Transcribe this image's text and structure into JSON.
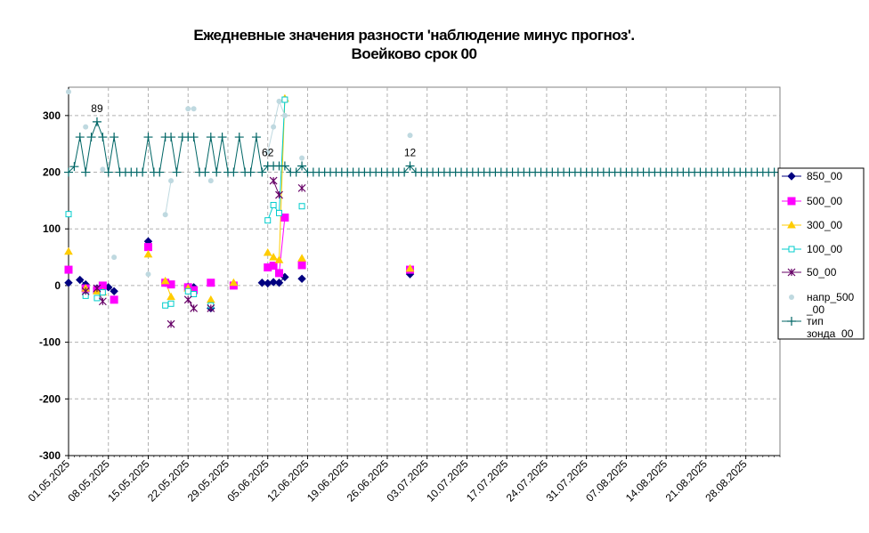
{
  "header": {
    "title_line1": "Ежедневные значения разности 'наблюдение минус прогноз'.",
    "title_line2": "Воейково     срок 00"
  },
  "chart_data": {
    "type": "line",
    "xlabel": "",
    "ylabel": "",
    "ylim": [
      -300,
      350
    ],
    "yticks": [
      -300,
      -200,
      -100,
      0,
      100,
      200,
      300
    ],
    "ytick_labels": [
      "-300",
      "-200",
      "-100",
      "0",
      "100",
      "200",
      "300"
    ],
    "xlim": [
      "2025-05-01",
      "2025-09-03"
    ],
    "xticks": [
      "01.05.2025",
      "08.05.2025",
      "15.05.2025",
      "22.05.2025",
      "29.05.2025",
      "05.06.2025",
      "12.06.2025",
      "19.06.2025",
      "26.06.2025",
      "03.07.2025",
      "10.07.2025",
      "17.07.2025",
      "24.07.2025",
      "31.07.2025",
      "07.08.2025",
      "14.08.2025",
      "21.08.2025",
      "28.08.2025"
    ],
    "grid": true,
    "legend_position": "right",
    "annotations": [
      {
        "text": "89",
        "x": "2025-05-06"
      },
      {
        "text": "62",
        "x": "2025-06-05"
      },
      {
        "text": "12",
        "x": "2025-06-30"
      }
    ],
    "series": [
      {
        "name": "850_00",
        "color": "#000080",
        "marker": "diamond",
        "points": [
          [
            "2025-05-01",
            5
          ],
          [
            "2025-05-03",
            10
          ],
          [
            "2025-05-04",
            2
          ],
          [
            "2025-05-06",
            -5
          ],
          [
            "2025-05-08",
            -3
          ],
          [
            "2025-05-09",
            -10
          ],
          [
            "2025-05-15",
            78
          ],
          [
            "2025-05-18",
            5
          ],
          [
            "2025-05-22",
            -2
          ],
          [
            "2025-05-23",
            -3
          ],
          [
            "2025-05-26",
            -40
          ],
          [
            "2025-05-30",
            2
          ],
          [
            "2025-06-04",
            5
          ],
          [
            "2025-06-05",
            4
          ],
          [
            "2025-06-06",
            6
          ],
          [
            "2025-06-07",
            5
          ],
          [
            "2025-06-08",
            15
          ],
          [
            "2025-06-11",
            12
          ],
          [
            "2025-06-30",
            20
          ]
        ]
      },
      {
        "name": "500_00",
        "color": "#FF00FF",
        "marker": "square",
        "points": [
          [
            "2025-05-01",
            28
          ],
          [
            "2025-05-04",
            -5
          ],
          [
            "2025-05-06",
            -8
          ],
          [
            "2025-05-07",
            0
          ],
          [
            "2025-05-09",
            -25
          ],
          [
            "2025-05-15",
            68
          ],
          [
            "2025-05-18",
            5
          ],
          [
            "2025-05-19",
            2
          ],
          [
            "2025-05-22",
            -3
          ],
          [
            "2025-05-23",
            -8
          ],
          [
            "2025-05-26",
            5
          ],
          [
            "2025-05-30",
            0
          ],
          [
            "2025-06-05",
            32
          ],
          [
            "2025-06-06",
            35
          ],
          [
            "2025-06-07",
            22
          ],
          [
            "2025-06-08",
            120
          ],
          [
            "2025-06-11",
            36
          ],
          [
            "2025-06-30",
            28
          ]
        ]
      },
      {
        "name": "300_00",
        "color": "#FFCC00",
        "marker": "triangle",
        "points": [
          [
            "2025-05-01",
            60
          ],
          [
            "2025-05-04",
            -5
          ],
          [
            "2025-05-06",
            -10
          ],
          [
            "2025-05-07",
            -12
          ],
          [
            "2025-05-15",
            55
          ],
          [
            "2025-05-18",
            8
          ],
          [
            "2025-05-19",
            -20
          ],
          [
            "2025-05-22",
            -5
          ],
          [
            "2025-05-26",
            -25
          ],
          [
            "2025-05-30",
            5
          ],
          [
            "2025-06-05",
            58
          ],
          [
            "2025-06-06",
            50
          ],
          [
            "2025-06-07",
            45
          ],
          [
            "2025-06-08",
            330
          ],
          [
            "2025-06-11",
            48
          ],
          [
            "2025-06-30",
            30
          ]
        ]
      },
      {
        "name": "100_00",
        "color": "#00CCCC",
        "marker": "open-square",
        "points": [
          [
            "2025-05-01",
            126
          ],
          [
            "2025-05-04",
            -18
          ],
          [
            "2025-05-06",
            -22
          ],
          [
            "2025-05-07",
            -12
          ],
          [
            "2025-05-18",
            -35
          ],
          [
            "2025-05-19",
            -32
          ],
          [
            "2025-05-22",
            -10
          ],
          [
            "2025-05-23",
            -15
          ],
          [
            "2025-05-26",
            -35
          ],
          [
            "2025-06-05",
            115
          ],
          [
            "2025-06-06",
            142
          ],
          [
            "2025-06-07",
            128
          ],
          [
            "2025-06-08",
            328
          ],
          [
            "2025-06-11",
            140
          ]
        ]
      },
      {
        "name": "50_00",
        "color": "#660066",
        "marker": "x",
        "points": [
          [
            "2025-05-04",
            -10
          ],
          [
            "2025-05-06",
            -5
          ],
          [
            "2025-05-07",
            -28
          ],
          [
            "2025-05-19",
            -68
          ],
          [
            "2025-05-22",
            -25
          ],
          [
            "2025-05-23",
            -40
          ],
          [
            "2025-05-26",
            -40
          ],
          [
            "2025-06-06",
            185
          ],
          [
            "2025-06-07",
            160
          ],
          [
            "2025-06-11",
            172
          ]
        ]
      },
      {
        "name": "напр_500_00",
        "color": "#BFD9E0",
        "marker": "dot",
        "points": [
          [
            "2025-05-01",
            342
          ],
          [
            "2025-05-04",
            280
          ],
          [
            "2025-05-07",
            205
          ],
          [
            "2025-05-09",
            50
          ],
          [
            "2025-05-15",
            20
          ],
          [
            "2025-05-18",
            125
          ],
          [
            "2025-05-19",
            185
          ],
          [
            "2025-05-22",
            312
          ],
          [
            "2025-05-23",
            312
          ],
          [
            "2025-05-26",
            185
          ],
          [
            "2025-06-05",
            235
          ],
          [
            "2025-06-06",
            280
          ],
          [
            "2025-06-07",
            325
          ],
          [
            "2025-06-08",
            300
          ],
          [
            "2025-06-11",
            225
          ],
          [
            "2025-06-30",
            265
          ]
        ]
      },
      {
        "name": "тип зонда_00",
        "color": "#006666",
        "marker": "plus",
        "note": "value 200 on all days from 2025-05-01 to 2025-09-03 except the days listed",
        "base": 200,
        "points": [
          [
            "2025-05-02",
            210
          ],
          [
            "2025-05-03",
            262
          ],
          [
            "2025-05-04",
            200
          ],
          [
            "2025-05-05",
            262
          ],
          [
            "2025-05-06",
            289
          ],
          [
            "2025-05-07",
            262
          ],
          [
            "2025-05-08",
            200
          ],
          [
            "2025-05-09",
            262
          ],
          [
            "2025-05-15",
            262
          ],
          [
            "2025-05-18",
            262
          ],
          [
            "2025-05-19",
            262
          ],
          [
            "2025-05-20",
            200
          ],
          [
            "2025-05-21",
            262
          ],
          [
            "2025-05-22",
            262
          ],
          [
            "2025-05-23",
            262
          ],
          [
            "2025-05-25",
            200
          ],
          [
            "2025-05-26",
            262
          ],
          [
            "2025-05-28",
            262
          ],
          [
            "2025-05-31",
            262
          ],
          [
            "2025-06-03",
            262
          ],
          [
            "2025-06-05",
            211
          ],
          [
            "2025-06-06",
            211
          ],
          [
            "2025-06-07",
            211
          ],
          [
            "2025-06-08",
            211
          ],
          [
            "2025-06-11",
            211
          ],
          [
            "2025-06-30",
            211
          ]
        ]
      }
    ]
  }
}
